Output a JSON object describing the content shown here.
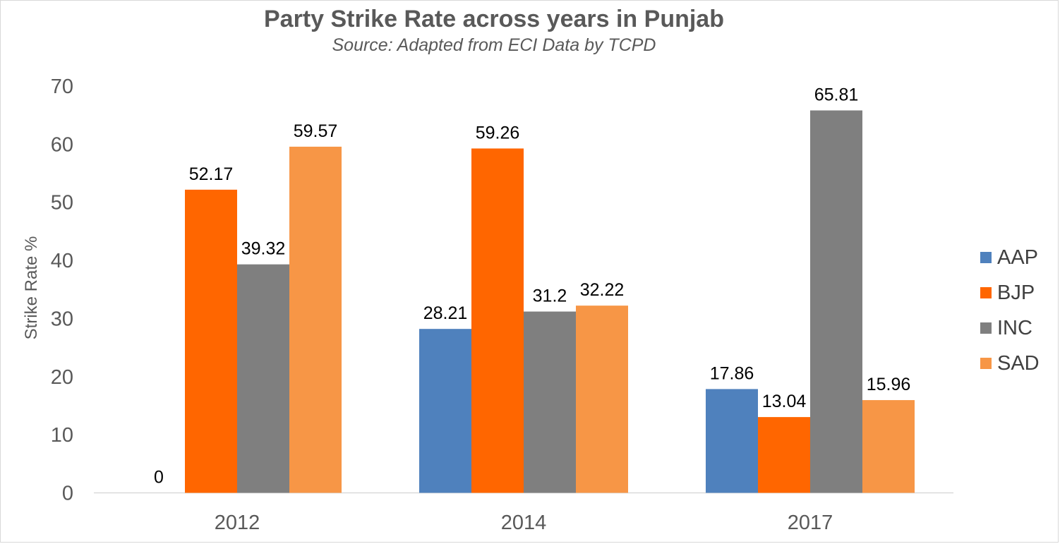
{
  "chart_data": {
    "type": "bar",
    "title": "Party Strike Rate across years in Punjab",
    "subtitle": "Source: Adapted from ECI Data by TCPD",
    "ylabel": "Strike Rate %",
    "xlabel": "",
    "ylim": [
      0,
      70
    ],
    "yticks": [
      0,
      10,
      20,
      30,
      40,
      50,
      60,
      70
    ],
    "categories": [
      "2012",
      "2014",
      "2017"
    ],
    "series": [
      {
        "name": "AAP",
        "color": "#4f81bd",
        "values": [
          0,
          28.21,
          17.86
        ]
      },
      {
        "name": "BJP",
        "color": "#ff6600",
        "values": [
          52.17,
          59.26,
          13.04
        ]
      },
      {
        "name": "INC",
        "color": "#7f7f7f",
        "values": [
          39.32,
          31.2,
          65.81
        ]
      },
      {
        "name": "SAD",
        "color": "#f79646",
        "values": [
          59.57,
          32.22,
          15.96
        ]
      }
    ],
    "grid": false,
    "legend_position": "right"
  }
}
